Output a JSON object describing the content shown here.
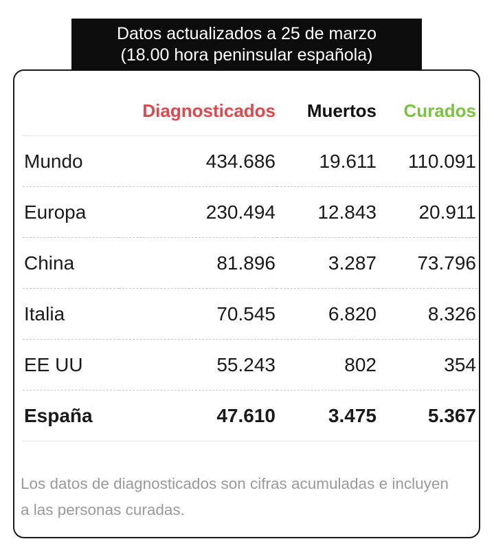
{
  "header": {
    "line1": "Datos actualizados a 25 de marzo",
    "line2": "(18.00 hora peninsular española)"
  },
  "colors": {
    "diagnosticados": "#e0474c",
    "muertos": "#111111",
    "curados": "#7cc242",
    "header_bg": "#0d0d0d",
    "note_text": "#9a9a9a"
  },
  "table": {
    "columns": [
      "",
      "Diagnosticados",
      "Muertos",
      "Curados"
    ],
    "rows": [
      {
        "name": "Mundo",
        "diagnosticados": "434.686",
        "muertos": "19.611",
        "curados": "110.091"
      },
      {
        "name": "Europa",
        "diagnosticados": "230.494",
        "muertos": "12.843",
        "curados": "20.911"
      },
      {
        "name": "China",
        "diagnosticados": "81.896",
        "muertos": "3.287",
        "curados": "73.796"
      },
      {
        "name": "Italia",
        "diagnosticados": "70.545",
        "muertos": "6.820",
        "curados": "8.326"
      },
      {
        "name": "EE UU",
        "diagnosticados": "55.243",
        "muertos": "802",
        "curados": "354"
      },
      {
        "name": "España",
        "diagnosticados": "47.610",
        "muertos": "3.475",
        "curados": "5.367"
      }
    ]
  },
  "note": "Los datos de diagnosticados son cifras acumuladas e incluyen a las personas curadas."
}
